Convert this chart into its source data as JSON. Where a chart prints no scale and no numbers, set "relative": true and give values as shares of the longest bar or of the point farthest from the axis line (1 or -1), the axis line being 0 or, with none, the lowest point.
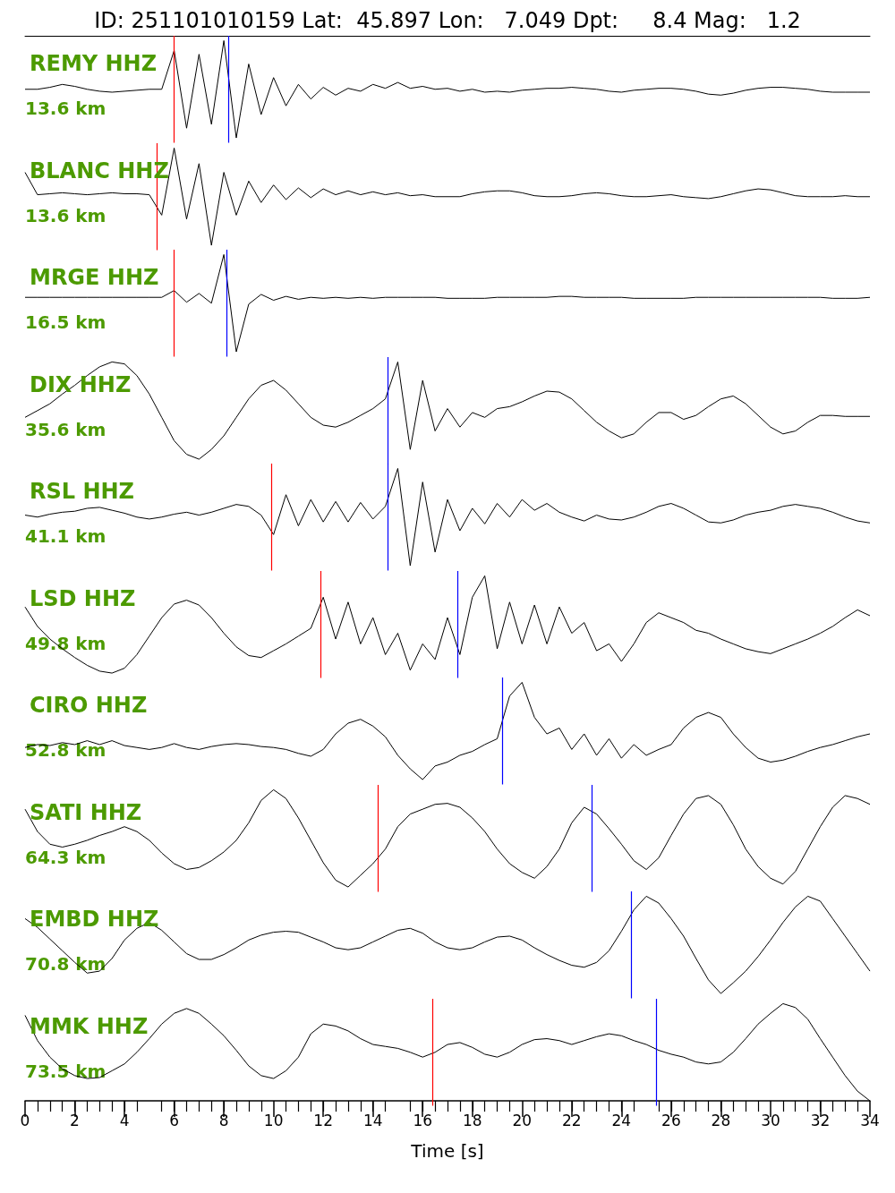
{
  "chart_data": [
    {
      "type": "line",
      "relative": true,
      "marker": "none",
      "title": "ID: 251101010159 Lat:  45.897 Lon:   7.049 Dpt:     8.4 Mag:   1.2",
      "subtitle": "REMY HHZ",
      "annotations": [
        "13.6 km"
      ],
      "xlim": [
        0,
        34
      ],
      "tick_labels": false,
      "x": [
        0,
        0.5,
        1,
        1.5,
        2,
        2.5,
        3,
        3.5,
        4,
        4.5,
        5,
        5.5,
        6,
        6.5,
        7,
        7.5,
        8,
        8.5,
        9,
        9.5,
        10,
        10.5,
        11,
        11.5,
        12,
        12.5,
        13,
        13.5,
        14,
        14.5,
        15,
        15.5,
        16,
        16.5,
        17,
        17.5,
        18,
        18.5,
        19,
        19.5,
        20,
        20.5,
        21,
        21.5,
        22,
        22.5,
        23,
        23.5,
        24,
        24.5,
        25,
        25.5,
        26,
        26.5,
        27,
        27.5,
        28,
        28.5,
        29,
        29.5,
        30,
        30.5,
        31,
        31.5,
        32,
        32.5,
        33,
        33.5,
        34
      ],
      "series": [
        {
          "color": "#000000",
          "values": [
            0.5,
            0.5,
            0.52,
            0.55,
            0.53,
            0.5,
            0.48,
            0.47,
            0.48,
            0.49,
            0.5,
            0.5,
            0.9,
            0.1,
            0.86,
            0.14,
            1,
            0,
            0.76,
            0.24,
            0.62,
            0.33,
            0.55,
            0.4,
            0.52,
            0.44,
            0.51,
            0.48,
            0.55,
            0.51,
            0.57,
            0.51,
            0.53,
            0.5,
            0.51,
            0.48,
            0.5,
            0.47,
            0.48,
            0.47,
            0.49,
            0.5,
            0.51,
            0.51,
            0.52,
            0.51,
            0.5,
            0.48,
            0.47,
            0.49,
            0.5,
            0.51,
            0.51,
            0.5,
            0.48,
            0.45,
            0.44,
            0.46,
            0.49,
            0.51,
            0.52,
            0.52,
            0.51,
            0.5,
            0.48,
            0.47,
            0.47,
            0.47,
            0.47
          ]
        }
      ],
      "ref_lines": [
        {
          "axis": "x",
          "value": 6.0,
          "color": "#ff0000"
        },
        {
          "axis": "x",
          "value": 8.2,
          "color": "#0000ff"
        }
      ]
    },
    {
      "type": "line",
      "relative": true,
      "marker": "none",
      "subtitle": "BLANC HHZ",
      "annotations": [
        "13.6 km"
      ],
      "xlim": [
        0,
        34
      ],
      "tick_labels": false,
      "x": [
        0,
        0.5,
        1,
        1.5,
        2,
        2.5,
        3,
        3.5,
        4,
        4.5,
        5,
        5.5,
        6,
        6.5,
        7,
        7.5,
        8,
        8.5,
        9,
        9.5,
        10,
        10.5,
        11,
        11.5,
        12,
        12.5,
        13,
        13.5,
        14,
        14.5,
        15,
        15.5,
        16,
        16.5,
        17,
        17.5,
        18,
        18.5,
        19,
        19.5,
        20,
        20.5,
        21,
        21.5,
        22,
        22.5,
        23,
        23.5,
        24,
        24.5,
        25,
        25.5,
        26,
        26.5,
        27,
        27.5,
        28,
        28.5,
        29,
        29.5,
        30,
        30.5,
        31,
        31.5,
        32,
        32.5,
        33,
        33.5,
        34
      ],
      "series": [
        {
          "color": "#000000",
          "values": [
            0.75,
            0.52,
            0.53,
            0.54,
            0.53,
            0.52,
            0.53,
            0.54,
            0.53,
            0.53,
            0.52,
            0.31,
            1,
            0.27,
            0.84,
            0,
            0.75,
            0.31,
            0.66,
            0.44,
            0.62,
            0.47,
            0.59,
            0.49,
            0.58,
            0.52,
            0.56,
            0.52,
            0.55,
            0.52,
            0.54,
            0.51,
            0.52,
            0.5,
            0.5,
            0.5,
            0.53,
            0.55,
            0.56,
            0.56,
            0.54,
            0.51,
            0.5,
            0.5,
            0.51,
            0.53,
            0.54,
            0.53,
            0.51,
            0.5,
            0.5,
            0.51,
            0.52,
            0.5,
            0.49,
            0.48,
            0.5,
            0.53,
            0.56,
            0.58,
            0.57,
            0.54,
            0.51,
            0.5,
            0.5,
            0.5,
            0.51,
            0.5,
            0.5
          ]
        }
      ],
      "ref_lines": [
        {
          "axis": "x",
          "value": 5.3,
          "color": "#ff0000"
        }
      ]
    },
    {
      "type": "line",
      "relative": true,
      "marker": "none",
      "subtitle": "MRGE HHZ",
      "annotations": [
        "16.5 km"
      ],
      "xlim": [
        0,
        34
      ],
      "tick_labels": false,
      "x": [
        0,
        0.5,
        1,
        1.5,
        2,
        2.5,
        3,
        3.5,
        4,
        4.5,
        5,
        5.5,
        6,
        6.5,
        7,
        7.5,
        8,
        8.5,
        9,
        9.5,
        10,
        10.5,
        11,
        11.5,
        12,
        12.5,
        13,
        13.5,
        14,
        14.5,
        15,
        15.5,
        16,
        16.5,
        17,
        17.5,
        18,
        18.5,
        19,
        19.5,
        20,
        20.5,
        21,
        21.5,
        22,
        22.5,
        23,
        23.5,
        24,
        24.5,
        25,
        25.5,
        26,
        26.5,
        27,
        27.5,
        28,
        28.5,
        29,
        29.5,
        30,
        30.5,
        31,
        31.5,
        32,
        32.5,
        33,
        33.5,
        34
      ],
      "series": [
        {
          "color": "#000000",
          "values": [
            0.56,
            0.56,
            0.56,
            0.56,
            0.56,
            0.56,
            0.56,
            0.56,
            0.56,
            0.56,
            0.56,
            0.56,
            0.63,
            0.51,
            0.6,
            0.5,
            1,
            0,
            0.49,
            0.59,
            0.53,
            0.57,
            0.54,
            0.56,
            0.55,
            0.56,
            0.55,
            0.56,
            0.55,
            0.56,
            0.56,
            0.56,
            0.56,
            0.56,
            0.55,
            0.55,
            0.55,
            0.55,
            0.56,
            0.56,
            0.56,
            0.56,
            0.56,
            0.57,
            0.57,
            0.56,
            0.56,
            0.56,
            0.56,
            0.55,
            0.55,
            0.55,
            0.55,
            0.55,
            0.56,
            0.56,
            0.56,
            0.56,
            0.56,
            0.56,
            0.56,
            0.56,
            0.56,
            0.56,
            0.56,
            0.55,
            0.55,
            0.55,
            0.56
          ]
        }
      ],
      "ref_lines": [
        {
          "axis": "x",
          "value": 6.0,
          "color": "#ff0000"
        },
        {
          "axis": "x",
          "value": 8.1,
          "color": "#0000ff"
        }
      ]
    },
    {
      "type": "line",
      "relative": true,
      "marker": "none",
      "subtitle": "DIX HHZ",
      "annotations": [
        "35.6 km"
      ],
      "xlim": [
        0,
        34
      ],
      "tick_labels": false,
      "x": [
        0,
        0.5,
        1,
        1.5,
        2,
        2.5,
        3,
        3.5,
        4,
        4.5,
        5,
        5.5,
        6,
        6.5,
        7,
        7.5,
        8,
        8.5,
        9,
        9.5,
        10,
        10.5,
        11,
        11.5,
        12,
        12.5,
        13,
        13.5,
        14,
        14.5,
        15,
        15.5,
        16,
        16.5,
        17,
        17.5,
        18,
        18.5,
        19,
        19.5,
        20,
        20.5,
        21,
        21.5,
        22,
        22.5,
        23,
        23.5,
        24,
        24.5,
        25,
        25.5,
        26,
        26.5,
        27,
        27.5,
        28,
        28.5,
        29,
        29.5,
        30,
        30.5,
        31,
        31.5,
        32,
        32.5,
        33,
        33.5,
        34
      ],
      "series": [
        {
          "color": "#000000",
          "values": [
            0.43,
            0.5,
            0.57,
            0.67,
            0.76,
            0.86,
            0.95,
            1,
            0.98,
            0.86,
            0.67,
            0.43,
            0.19,
            0.05,
            0,
            0.1,
            0.24,
            0.43,
            0.62,
            0.76,
            0.81,
            0.71,
            0.57,
            0.43,
            0.35,
            0.33,
            0.38,
            0.45,
            0.52,
            0.62,
            1,
            0.1,
            0.81,
            0.29,
            0.52,
            0.33,
            0.48,
            0.43,
            0.52,
            0.54,
            0.59,
            0.65,
            0.7,
            0.69,
            0.62,
            0.5,
            0.38,
            0.29,
            0.22,
            0.26,
            0.38,
            0.48,
            0.48,
            0.41,
            0.45,
            0.54,
            0.62,
            0.65,
            0.57,
            0.45,
            0.33,
            0.26,
            0.29,
            0.38,
            0.45,
            0.45,
            0.44,
            0.44,
            0.44
          ]
        }
      ],
      "ref_lines": [
        {
          "axis": "x",
          "value": 14.6,
          "color": "#0000ff"
        }
      ]
    },
    {
      "type": "line",
      "relative": true,
      "marker": "none",
      "subtitle": "RSL HHZ",
      "annotations": [
        "41.1 km"
      ],
      "xlim": [
        0,
        34
      ],
      "tick_labels": false,
      "x": [
        0,
        0.5,
        1,
        1.5,
        2,
        2.5,
        3,
        3.5,
        4,
        4.5,
        5,
        5.5,
        6,
        6.5,
        7,
        7.5,
        8,
        8.5,
        9,
        9.5,
        10,
        10.5,
        11,
        11.5,
        12,
        12.5,
        13,
        13.5,
        14,
        14.5,
        15,
        15.5,
        16,
        16.5,
        17,
        17.5,
        18,
        18.5,
        19,
        19.5,
        20,
        20.5,
        21,
        21.5,
        22,
        22.5,
        23,
        23.5,
        24,
        24.5,
        25,
        25.5,
        26,
        26.5,
        27,
        27.5,
        28,
        28.5,
        29,
        29.5,
        30,
        30.5,
        31,
        31.5,
        32,
        32.5,
        33,
        33.5,
        34
      ],
      "series": [
        {
          "color": "#000000",
          "values": [
            0.52,
            0.5,
            0.53,
            0.55,
            0.56,
            0.59,
            0.6,
            0.57,
            0.54,
            0.5,
            0.48,
            0.5,
            0.53,
            0.55,
            0.52,
            0.55,
            0.59,
            0.63,
            0.61,
            0.52,
            0.32,
            0.73,
            0.41,
            0.68,
            0.45,
            0.66,
            0.45,
            0.65,
            0.48,
            0.61,
            1,
            0,
            0.86,
            0.14,
            0.68,
            0.36,
            0.59,
            0.43,
            0.64,
            0.5,
            0.68,
            0.57,
            0.64,
            0.55,
            0.5,
            0.46,
            0.52,
            0.48,
            0.47,
            0.5,
            0.55,
            0.61,
            0.64,
            0.59,
            0.52,
            0.45,
            0.44,
            0.47,
            0.52,
            0.55,
            0.57,
            0.61,
            0.63,
            0.61,
            0.59,
            0.55,
            0.5,
            0.46,
            0.44
          ]
        }
      ],
      "ref_lines": [
        {
          "axis": "x",
          "value": 9.9,
          "color": "#ff0000"
        },
        {
          "axis": "x",
          "value": 14.6,
          "color": "#0000ff"
        }
      ]
    },
    {
      "type": "line",
      "relative": true,
      "marker": "none",
      "subtitle": "LSD HHZ",
      "annotations": [
        "49.8 km"
      ],
      "xlim": [
        0,
        34
      ],
      "tick_labels": false,
      "x": [
        0,
        0.5,
        1,
        1.5,
        2,
        2.5,
        3,
        3.5,
        4,
        4.5,
        5,
        5.5,
        6,
        6.5,
        7,
        7.5,
        8,
        8.5,
        9,
        9.5,
        10,
        10.5,
        11,
        11.5,
        12,
        12.5,
        13,
        13.5,
        14,
        14.5,
        15,
        15.5,
        16,
        16.5,
        17,
        17.5,
        18,
        18.5,
        19,
        19.5,
        20,
        20.5,
        21,
        21.5,
        22,
        22.5,
        23,
        23.5,
        24,
        24.5,
        25,
        25.5,
        26,
        26.5,
        27,
        27.5,
        28,
        28.5,
        29,
        29.5,
        30,
        30.5,
        31,
        31.5,
        32,
        32.5,
        33,
        33.5,
        34
      ],
      "series": [
        {
          "color": "#000000",
          "values": [
            0.68,
            0.48,
            0.35,
            0.25,
            0.16,
            0.08,
            0.02,
            0,
            0.05,
            0.19,
            0.38,
            0.57,
            0.71,
            0.75,
            0.7,
            0.57,
            0.41,
            0.27,
            0.18,
            0.16,
            0.23,
            0.3,
            0.38,
            0.46,
            0.78,
            0.35,
            0.73,
            0.3,
            0.57,
            0.19,
            0.41,
            0.03,
            0.3,
            0.14,
            0.57,
            0.19,
            0.78,
            1,
            0.25,
            0.73,
            0.3,
            0.7,
            0.3,
            0.68,
            0.41,
            0.52,
            0.23,
            0.3,
            0.12,
            0.3,
            0.52,
            0.62,
            0.57,
            0.52,
            0.44,
            0.41,
            0.35,
            0.3,
            0.25,
            0.22,
            0.2,
            0.25,
            0.3,
            0.35,
            0.41,
            0.48,
            0.57,
            0.65,
            0.59
          ]
        }
      ],
      "ref_lines": [
        {
          "axis": "x",
          "value": 11.9,
          "color": "#ff0000"
        },
        {
          "axis": "x",
          "value": 17.4,
          "color": "#0000ff"
        }
      ]
    },
    {
      "type": "line",
      "relative": true,
      "marker": "none",
      "subtitle": "CIRO HHZ",
      "annotations": [
        "52.8 km"
      ],
      "xlim": [
        0,
        34
      ],
      "tick_labels": false,
      "x": [
        0,
        0.5,
        1,
        1.5,
        2,
        2.5,
        3,
        3.5,
        4,
        4.5,
        5,
        5.5,
        6,
        6.5,
        7,
        7.5,
        8,
        8.5,
        9,
        9.5,
        10,
        10.5,
        11,
        11.5,
        12,
        12.5,
        13,
        13.5,
        14,
        14.5,
        15,
        15.5,
        16,
        16.5,
        17,
        17.5,
        18,
        18.5,
        19,
        19.5,
        20,
        20.5,
        21,
        21.5,
        22,
        22.5,
        23,
        23.5,
        24,
        24.5,
        25,
        25.5,
        26,
        26.5,
        27,
        27.5,
        28,
        28.5,
        29,
        29.5,
        30,
        30.5,
        31,
        31.5,
        32,
        32.5,
        33,
        33.5,
        34
      ],
      "series": [
        {
          "color": "#000000",
          "values": [
            0.33,
            0.36,
            0.35,
            0.38,
            0.36,
            0.4,
            0.36,
            0.4,
            0.35,
            0.33,
            0.31,
            0.33,
            0.37,
            0.33,
            0.31,
            0.34,
            0.36,
            0.37,
            0.36,
            0.34,
            0.33,
            0.31,
            0.27,
            0.24,
            0.31,
            0.47,
            0.58,
            0.62,
            0.55,
            0.44,
            0.25,
            0.11,
            0,
            0.14,
            0.18,
            0.25,
            0.29,
            0.36,
            0.42,
            0.86,
            1,
            0.64,
            0.47,
            0.53,
            0.31,
            0.47,
            0.25,
            0.42,
            0.22,
            0.36,
            0.25,
            0.31,
            0.36,
            0.53,
            0.64,
            0.69,
            0.64,
            0.47,
            0.33,
            0.22,
            0.18,
            0.2,
            0.24,
            0.29,
            0.33,
            0.36,
            0.4,
            0.44,
            0.47
          ]
        }
      ],
      "ref_lines": [
        {
          "axis": "x",
          "value": 19.2,
          "color": "#0000ff"
        }
      ]
    },
    {
      "type": "line",
      "relative": true,
      "marker": "none",
      "subtitle": "SATI HHZ",
      "annotations": [
        "64.3 km"
      ],
      "xlim": [
        0,
        34
      ],
      "tick_labels": false,
      "x": [
        0,
        0.5,
        1,
        1.5,
        2,
        2.5,
        3,
        3.5,
        4,
        4.5,
        5,
        5.5,
        6,
        6.5,
        7,
        7.5,
        8,
        8.5,
        9,
        9.5,
        10,
        10.5,
        11,
        11.5,
        12,
        12.5,
        13,
        13.5,
        14,
        14.5,
        15,
        15.5,
        16,
        16.5,
        17,
        17.5,
        18,
        18.5,
        19,
        19.5,
        20,
        20.5,
        21,
        21.5,
        22,
        22.5,
        23,
        23.5,
        24,
        24.5,
        25,
        25.5,
        26,
        26.5,
        27,
        27.5,
        28,
        28.5,
        29,
        29.5,
        30,
        30.5,
        31,
        31.5,
        32,
        32.5,
        33,
        33.5,
        34
      ],
      "series": [
        {
          "color": "#000000",
          "values": [
            0.8,
            0.57,
            0.44,
            0.41,
            0.44,
            0.48,
            0.53,
            0.57,
            0.62,
            0.57,
            0.48,
            0.35,
            0.24,
            0.18,
            0.2,
            0.27,
            0.36,
            0.48,
            0.66,
            0.89,
            1,
            0.91,
            0.71,
            0.48,
            0.25,
            0.07,
            0,
            0.12,
            0.24,
            0.39,
            0.62,
            0.75,
            0.8,
            0.85,
            0.86,
            0.82,
            0.71,
            0.57,
            0.39,
            0.24,
            0.15,
            0.09,
            0.21,
            0.39,
            0.66,
            0.82,
            0.75,
            0.6,
            0.44,
            0.27,
            0.18,
            0.3,
            0.53,
            0.75,
            0.91,
            0.94,
            0.85,
            0.64,
            0.39,
            0.21,
            0.09,
            0.03,
            0.16,
            0.39,
            0.62,
            0.82,
            0.94,
            0.91,
            0.85
          ]
        }
      ],
      "ref_lines": [
        {
          "axis": "x",
          "value": 14.2,
          "color": "#ff0000"
        },
        {
          "axis": "x",
          "value": 22.8,
          "color": "#0000ff"
        }
      ]
    },
    {
      "type": "line",
      "relative": true,
      "marker": "none",
      "subtitle": "EMBD HHZ",
      "annotations": [
        "70.8 km"
      ],
      "xlim": [
        0,
        34
      ],
      "tick_labels": false,
      "x": [
        0,
        0.5,
        1,
        1.5,
        2,
        2.5,
        3,
        3.5,
        4,
        4.5,
        5,
        5.5,
        6,
        6.5,
        7,
        7.5,
        8,
        8.5,
        9,
        9.5,
        10,
        10.5,
        11,
        11.5,
        12,
        12.5,
        13,
        13.5,
        14,
        14.5,
        15,
        15.5,
        16,
        16.5,
        17,
        17.5,
        18,
        18.5,
        19,
        19.5,
        20,
        20.5,
        21,
        21.5,
        22,
        22.5,
        23,
        23.5,
        24,
        24.5,
        25,
        25.5,
        26,
        26.5,
        27,
        27.5,
        28,
        28.5,
        29,
        29.5,
        30,
        30.5,
        31,
        31.5,
        32,
        32.5,
        33,
        33.5,
        34
      ],
      "series": [
        {
          "color": "#000000",
          "values": [
            0.77,
            0.68,
            0.56,
            0.44,
            0.32,
            0.21,
            0.23,
            0.36,
            0.55,
            0.67,
            0.73,
            0.65,
            0.53,
            0.41,
            0.35,
            0.35,
            0.4,
            0.47,
            0.55,
            0.6,
            0.63,
            0.64,
            0.63,
            0.58,
            0.53,
            0.47,
            0.45,
            0.47,
            0.53,
            0.59,
            0.65,
            0.67,
            0.62,
            0.53,
            0.47,
            0.45,
            0.47,
            0.53,
            0.58,
            0.59,
            0.55,
            0.47,
            0.4,
            0.34,
            0.29,
            0.27,
            0.32,
            0.44,
            0.64,
            0.86,
            1,
            0.93,
            0.77,
            0.59,
            0.36,
            0.14,
            0,
            0.11,
            0.23,
            0.38,
            0.55,
            0.73,
            0.89,
            1,
            0.95,
            0.77,
            0.59,
            0.41,
            0.23
          ]
        }
      ],
      "ref_lines": [
        {
          "axis": "x",
          "value": 24.4,
          "color": "#0000ff"
        }
      ]
    },
    {
      "type": "line",
      "relative": true,
      "marker": "none",
      "subtitle": "MMK HHZ",
      "annotations": [
        "73.5 km"
      ],
      "xlim": [
        0,
        34
      ],
      "tick_labels": "x",
      "xlabel": "Time [s]",
      "xticks": [
        0,
        2,
        4,
        6,
        8,
        10,
        12,
        14,
        16,
        18,
        20,
        22,
        24,
        26,
        28,
        30,
        32,
        34
      ],
      "x": [
        0,
        0.5,
        1,
        1.5,
        2,
        2.5,
        3,
        3.5,
        4,
        4.5,
        5,
        5.5,
        6,
        6.5,
        7,
        7.5,
        8,
        8.5,
        9,
        9.5,
        10,
        10.5,
        11,
        11.5,
        12,
        12.5,
        13,
        13.5,
        14,
        14.5,
        15,
        15.5,
        16,
        16.5,
        17,
        17.5,
        18,
        18.5,
        19,
        19.5,
        20,
        20.5,
        21,
        21.5,
        22,
        22.5,
        23,
        23.5,
        24,
        24.5,
        25,
        25.5,
        26,
        26.5,
        27,
        27.5,
        28,
        28.5,
        29,
        29.5,
        30,
        30.5,
        31,
        31.5,
        32,
        32.5,
        33,
        33.5,
        34
      ],
      "series": [
        {
          "color": "#000000",
          "values": [
            0.88,
            0.62,
            0.45,
            0.33,
            0.26,
            0.23,
            0.24,
            0.31,
            0.38,
            0.5,
            0.64,
            0.79,
            0.9,
            0.95,
            0.9,
            0.79,
            0.67,
            0.52,
            0.36,
            0.26,
            0.23,
            0.31,
            0.45,
            0.69,
            0.79,
            0.77,
            0.72,
            0.64,
            0.58,
            0.56,
            0.54,
            0.5,
            0.45,
            0.5,
            0.58,
            0.6,
            0.55,
            0.48,
            0.45,
            0.5,
            0.58,
            0.63,
            0.64,
            0.62,
            0.58,
            0.62,
            0.66,
            0.69,
            0.67,
            0.62,
            0.58,
            0.52,
            0.48,
            0.45,
            0.4,
            0.38,
            0.4,
            0.5,
            0.64,
            0.79,
            0.9,
            1,
            0.96,
            0.84,
            0.64,
            0.45,
            0.26,
            0.1,
            0
          ]
        }
      ],
      "ref_lines": [
        {
          "axis": "x",
          "value": 16.4,
          "color": "#ff0000"
        },
        {
          "axis": "x",
          "value": 25.4,
          "color": "#0000ff"
        }
      ]
    }
  ]
}
